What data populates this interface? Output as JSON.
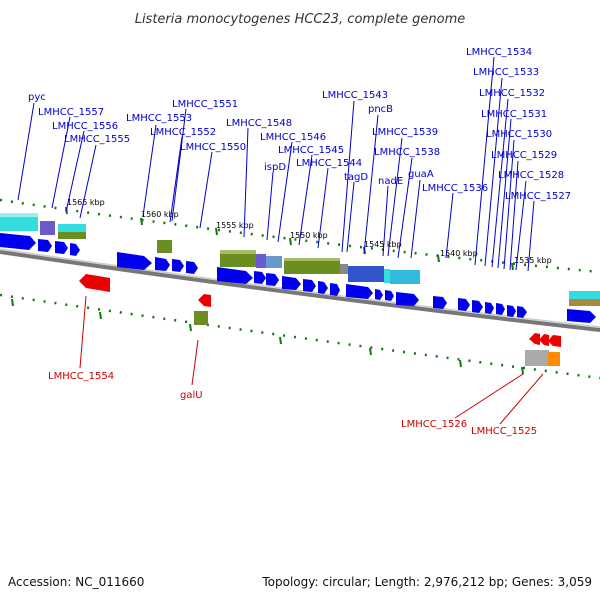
{
  "title": "Listeria monocytogenes HCC23, complete genome",
  "footer": {
    "accession": "Accession: NC_011660",
    "stats": "Topology: circular; Length: 2,976,212 bp; Genes: 3,059"
  },
  "colors": {
    "cds_forward": "#0000ee",
    "cds_reverse": "#ee0000",
    "label_forward": "#0000cc",
    "label_reverse": "#cc0000",
    "backbone": "#777777",
    "ticks": "#117711",
    "cog_green": "#6b8e23",
    "cog_cyan": "#33dddd",
    "cog_purple": "#6a5acd",
    "cog_orange": "#ff8c00"
  },
  "kbp_labels": [
    "1565 kbp",
    "1560 kbp",
    "1555 kbp",
    "1550 kbp",
    "1545 kbp",
    "1540 kbp",
    "1535 kbp"
  ],
  "forward_gene_labels": [
    "pyc",
    "LMHCC_1557",
    "LMHCC_1556",
    "LMHCC_1555",
    "LMHCC_1553",
    "LMHCC_1551",
    "LMHCC_1552",
    "LMHCC_1550",
    "LMHCC_1548",
    "ispD",
    "LMHCC_1546",
    "LMHCC_1545",
    "LMHCC_1544",
    "LMHCC_1543",
    "tagD",
    "pncB",
    "LMHCC_1539",
    "nadE",
    "LMHCC_1538",
    "guaA",
    "LMHCC_1536",
    "LMHCC_1534",
    "LMHCC_1533",
    "LMHCC_1532",
    "LMHCC_1531",
    "LMHCC_1530",
    "LMHCC_1529",
    "LMHCC_1528",
    "LMHCC_1527"
  ],
  "reverse_gene_labels": [
    "LMHCC_1554",
    "galU",
    "LMHCC_1526",
    "LMHCC_1525"
  ]
}
